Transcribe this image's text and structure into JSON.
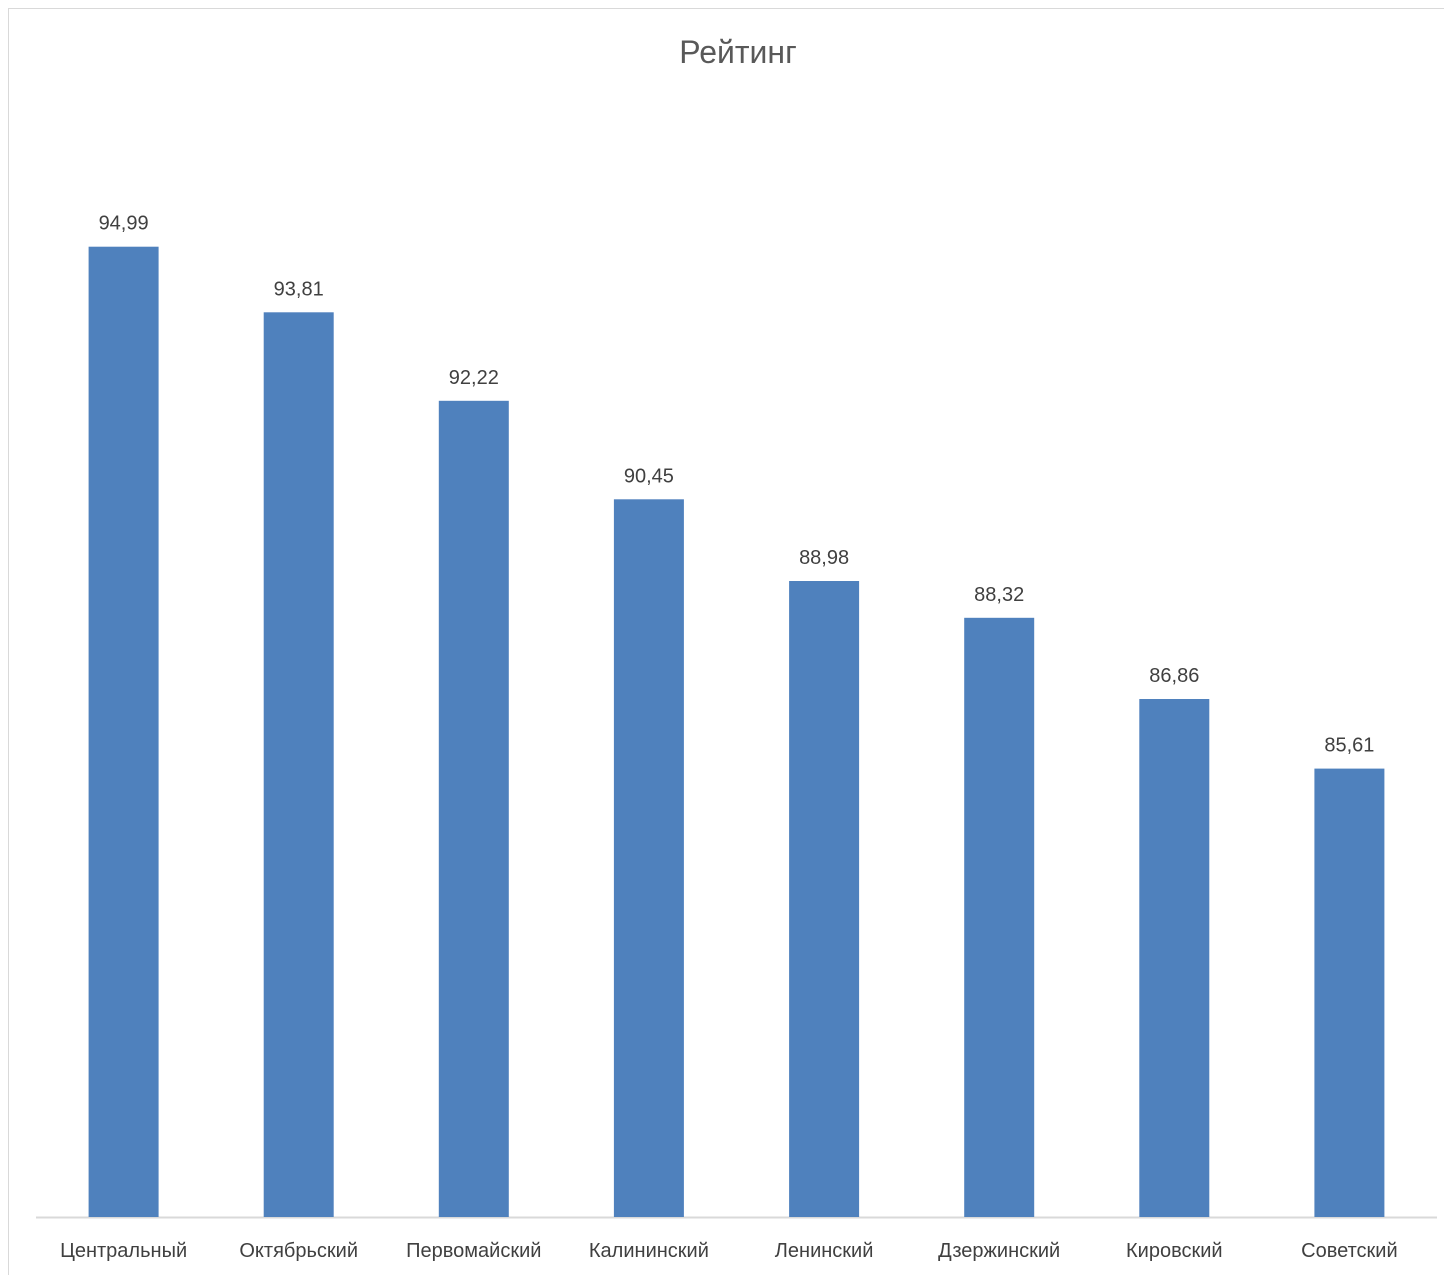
{
  "chart_data": {
    "type": "bar",
    "title": "Рейтинг",
    "categories": [
      "Центральный",
      "Октябрьский",
      "Первомайский",
      "Калининский",
      "Ленинский",
      "Дзержинский",
      "Кировский",
      "Советский"
    ],
    "values": [
      94.99,
      93.81,
      92.22,
      90.45,
      88.98,
      88.32,
      86.86,
      85.61
    ],
    "data_labels": [
      "94,99",
      "93,81",
      "92,22",
      "90,45",
      "88,98",
      "88,32",
      "86,86",
      "85,61"
    ],
    "ylim": [
      77.55,
      96.26
    ],
    "grid": false,
    "legend": "none",
    "bar_color": "#4f81bd",
    "axis_color": "#d9d9d9",
    "text_color": "#404040",
    "title_color": "#595959"
  }
}
